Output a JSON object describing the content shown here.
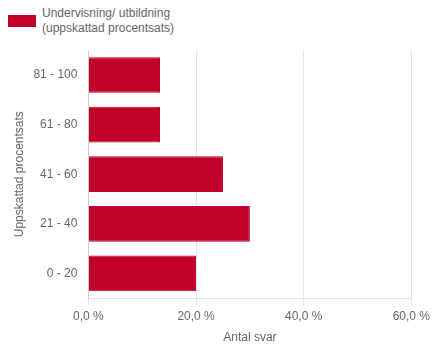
{
  "chart_data": {
    "type": "bar",
    "orientation": "horizontal",
    "categories": [
      "0 - 20",
      "21 - 40",
      "41 - 60",
      "61 - 80",
      "81 - 100"
    ],
    "series": [
      {
        "name": "Undervisning/ utbildning\n(uppskattad procentsats)",
        "color": "#c0002a",
        "values": [
          20.0,
          30.0,
          25.0,
          13.3,
          13.3
        ]
      }
    ],
    "x_label": "Antal svar",
    "y_label": "Uppskattad procentsats",
    "xlim": [
      0,
      60
    ],
    "xticks": [
      {
        "value": 0,
        "label": "0,0 %"
      },
      {
        "value": 20,
        "label": "20,0 %"
      },
      {
        "value": 40,
        "label": "40,0 %"
      },
      {
        "value": 60,
        "label": "60,0 %"
      }
    ],
    "grid": true,
    "legend": "upper left"
  }
}
